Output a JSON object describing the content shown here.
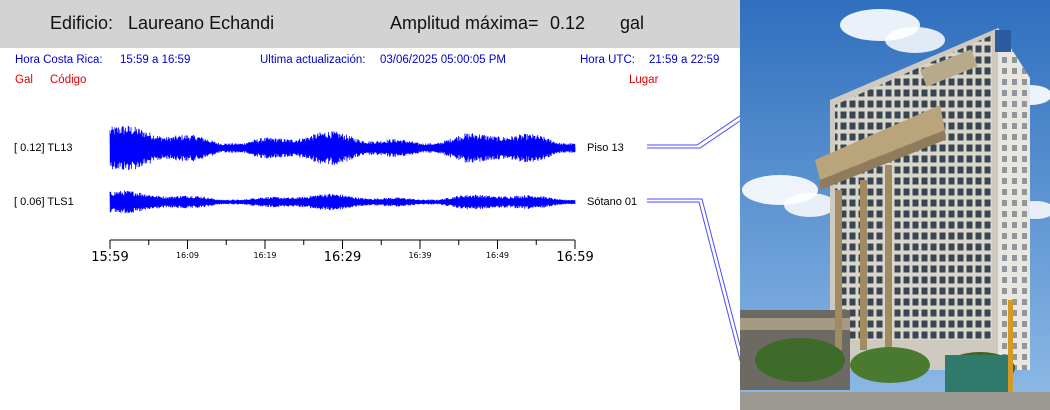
{
  "header": {
    "building_label": "Edificio:",
    "building_name": "Laureano Echandi",
    "amp_label": "Amplitud máxima=",
    "amp_value": "0.12",
    "amp_unit": "gal"
  },
  "info": {
    "cr_label": "Hora Costa Rica:",
    "cr_range": "15:59 a 16:59",
    "update_label": "Ultima actualización:",
    "update_value": "03/06/2025 05:00:05 PM",
    "utc_label": "Hora UTC:",
    "utc_range": "21:59 a 22:59"
  },
  "columns": {
    "gal": "Gal",
    "code": "Código",
    "place": "Lugar"
  },
  "chart_data": {
    "type": "line",
    "title": "",
    "series": [
      {
        "name": "TL13",
        "amplitude_gal": 0.12,
        "label": "[   0.12] TL13",
        "place": "Piso 13"
      },
      {
        "name": "TLS1",
        "amplitude_gal": 0.06,
        "label": "[   0.06] TLS1",
        "place": "Sótano 01"
      }
    ],
    "x_range": [
      "15:59",
      "16:59"
    ],
    "xticks": [
      "15:59",
      "16:09",
      "16:19",
      "16:29",
      "16:39",
      "16:49",
      "16:59"
    ],
    "colors": {
      "trace": "#0000ff",
      "leader": "#4a4aff"
    }
  }
}
